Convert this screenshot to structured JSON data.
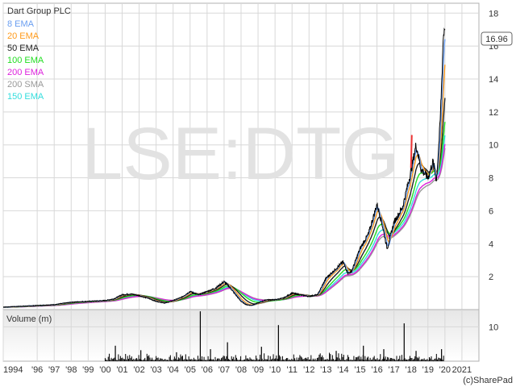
{
  "chart_data": [
    {
      "type": "line",
      "title": "Dart Group PLC",
      "watermark": "LSE:DTG",
      "last_price_label": "16.96",
      "ylim": [
        0,
        18.6
      ],
      "y_ticks": [
        2,
        4,
        6,
        8,
        10,
        12,
        14,
        16,
        18
      ],
      "x_ticks": [
        {
          "label": "1994",
          "x": 1994
        },
        {
          "label": "'96",
          "x": 1996
        },
        {
          "label": "'97",
          "x": 1997
        },
        {
          "label": "'98",
          "x": 1998
        },
        {
          "label": "'99",
          "x": 1999
        },
        {
          "label": "'00",
          "x": 2000
        },
        {
          "label": "'01",
          "x": 2001
        },
        {
          "label": "'02",
          "x": 2002
        },
        {
          "label": "'03",
          "x": 2003
        },
        {
          "label": "'04",
          "x": 2004
        },
        {
          "label": "'05",
          "x": 2005
        },
        {
          "label": "'06",
          "x": 2006
        },
        {
          "label": "'07",
          "x": 2007
        },
        {
          "label": "'08",
          "x": 2008
        },
        {
          "label": "'09",
          "x": 2009
        },
        {
          "label": "'10",
          "x": 2010
        },
        {
          "label": "'11",
          "x": 2011
        },
        {
          "label": "'12",
          "x": 2012
        },
        {
          "label": "'13",
          "x": 2013
        },
        {
          "label": "'14",
          "x": 2014
        },
        {
          "label": "'15",
          "x": 2015
        },
        {
          "label": "'16",
          "x": 2016
        },
        {
          "label": "'17",
          "x": 2017
        },
        {
          "label": "'18",
          "x": 2018
        },
        {
          "label": "'19",
          "x": 2019
        },
        {
          "label": "'20",
          "x": 2020
        },
        {
          "label": "2021",
          "x": 2021
        }
      ],
      "xlim": [
        1994,
        2022
      ],
      "grid": true,
      "legend_position": "top-left",
      "price": {
        "color": "#000000",
        "x": [
          1994.0,
          1995.0,
          1996.0,
          1997.0,
          1998.0,
          1999.0,
          2000.0,
          2000.5,
          2001.0,
          2001.5,
          2002.0,
          2002.5,
          2003.0,
          2003.5,
          2004.0,
          2004.5,
          2005.0,
          2005.5,
          2006.0,
          2006.5,
          2007.0,
          2007.3,
          2007.6,
          2008.0,
          2008.3,
          2008.6,
          2009.0,
          2009.5,
          2010.0,
          2010.5,
          2011.0,
          2011.5,
          2012.0,
          2012.5,
          2013.0,
          2013.5,
          2014.0,
          2014.3,
          2014.5,
          2015.0,
          2015.5,
          2016.0,
          2016.3,
          2016.6,
          2017.0,
          2017.5,
          2018.0,
          2018.3,
          2018.6,
          2019.0,
          2019.3,
          2019.5,
          2019.7,
          2019.8,
          2019.9,
          2020.0
        ],
        "y": [
          0.15,
          0.2,
          0.25,
          0.3,
          0.45,
          0.5,
          0.55,
          0.65,
          0.9,
          0.95,
          0.85,
          0.7,
          0.5,
          0.4,
          0.55,
          0.75,
          1.1,
          0.9,
          1.1,
          1.3,
          1.7,
          1.4,
          1.0,
          0.5,
          0.3,
          0.25,
          0.4,
          0.6,
          0.6,
          0.7,
          1.0,
          0.9,
          0.8,
          0.9,
          1.9,
          2.4,
          2.9,
          2.2,
          2.3,
          3.7,
          4.6,
          6.4,
          5.2,
          3.7,
          5.3,
          6.2,
          8.4,
          10.0,
          8.5,
          8.0,
          9.0,
          7.8,
          11.0,
          13.5,
          16.5,
          17.4
        ]
      },
      "moving_averages": [
        {
          "name": "8 EMA",
          "color": "#6a9ef0"
        },
        {
          "name": "20 EMA",
          "color": "#ff9a1a"
        },
        {
          "name": "50 EMA",
          "color": "#222222"
        },
        {
          "name": "100 EMA",
          "color": "#22dd22"
        },
        {
          "name": "200 EMA",
          "color": "#dd22dd"
        },
        {
          "name": "200 SMA",
          "color": "#999999"
        },
        {
          "name": "150 EMA",
          "color": "#33dddd"
        }
      ],
      "red_segment": {
        "color": "#ee3333",
        "x": [
          2018.0,
          2018.05
        ],
        "y": [
          8.6,
          10.6
        ]
      }
    },
    {
      "type": "bar",
      "title": "Volume (m)",
      "ylim": [
        0,
        15
      ],
      "y_ticks": [
        10
      ],
      "spikes": [
        {
          "x": 2000.6,
          "value": 4.5
        },
        {
          "x": 2002.1,
          "value": 3.2
        },
        {
          "x": 2004.2,
          "value": 2.6
        },
        {
          "x": 2005.6,
          "value": 14.5
        },
        {
          "x": 2006.2,
          "value": 3.5
        },
        {
          "x": 2007.2,
          "value": 5.5
        },
        {
          "x": 2009.2,
          "value": 4.2
        },
        {
          "x": 2010.2,
          "value": 10.5
        },
        {
          "x": 2013.6,
          "value": 3.0
        },
        {
          "x": 2015.2,
          "value": 4.5
        },
        {
          "x": 2016.4,
          "value": 3.5
        },
        {
          "x": 2017.6,
          "value": 11.0
        },
        {
          "x": 2018.3,
          "value": 3.0
        },
        {
          "x": 2019.8,
          "value": 3.5
        }
      ],
      "bar_color": "#000000"
    }
  ],
  "footer": {
    "copyright": "(c)SharePad"
  },
  "colors": {
    "grid": "#d8d8d8",
    "panel_bg": "#ffffff",
    "volume_bg_top": "#ececec",
    "frame": "#b0b0b0",
    "label_box_bg": "#ffffff"
  }
}
